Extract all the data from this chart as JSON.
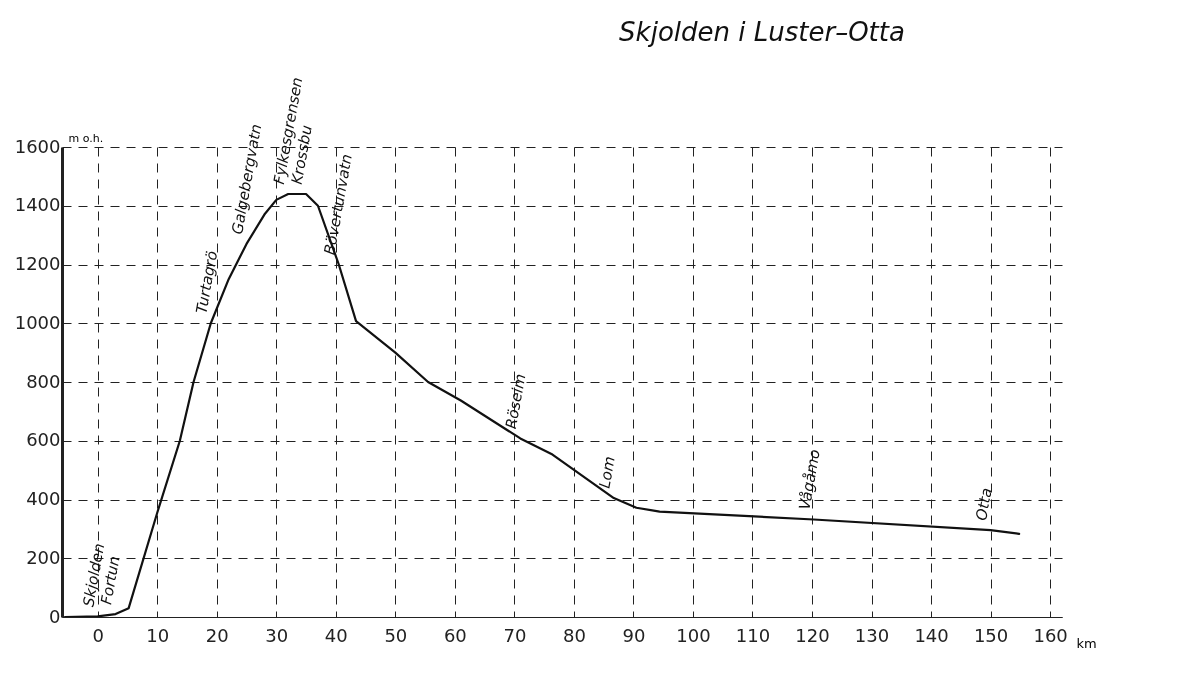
{
  "chart_data": {
    "type": "line",
    "title": "Skjolden i Luster–Otta",
    "xlabel": "km",
    "ylabel": "m o.h.",
    "x": [
      -5.5,
      0,
      3,
      5.2,
      10,
      13.8,
      16.1,
      19,
      22,
      25,
      28,
      30,
      32,
      35,
      37,
      40.5,
      43.4,
      50,
      55.5,
      61,
      71,
      76.4,
      86.7,
      90.5,
      94.4,
      120.3,
      150,
      154.8
    ],
    "series": [
      {
        "color": "#111111",
        "values": [
          0,
          2,
          10,
          30,
          355,
          600,
          800,
          1000,
          1150,
          1270,
          1370,
          1420,
          1440,
          1440,
          1400,
          1200,
          1007,
          900,
          800,
          737,
          608,
          553,
          405,
          372,
          359,
          332,
          296,
          283
        ]
      }
    ],
    "annotations": [
      {
        "text": "Skjolden",
        "x": 0,
        "y": 2
      },
      {
        "text": "Fortun",
        "x": 3,
        "y": 10
      },
      {
        "text": "Turtagrö",
        "x": 19,
        "y": 1000
      },
      {
        "text": "Galgebergvatn",
        "x": 25,
        "y": 1270
      },
      {
        "text": "Fylkesgrensen",
        "x": 32,
        "y": 1440
      },
      {
        "text": "Krossbu",
        "x": 35,
        "y": 1440
      },
      {
        "text": "Bövertunvatn",
        "x": 40.5,
        "y": 1200
      },
      {
        "text": "Röseim",
        "x": 71,
        "y": 608
      },
      {
        "text": "Lom",
        "x": 86.7,
        "y": 405
      },
      {
        "text": "Vågåmo",
        "x": 120.3,
        "y": 332
      },
      {
        "text": "Otta",
        "x": 150,
        "y": 296
      }
    ],
    "xlim": [
      -6,
      162
    ],
    "xticks": [
      0,
      10,
      20,
      30,
      40,
      50,
      60,
      70,
      80,
      90,
      100,
      110,
      120,
      130,
      140,
      150,
      160
    ],
    "ylim": [
      0,
      1600
    ],
    "yticks": [
      0,
      200,
      400,
      600,
      800,
      1000,
      1200,
      1400,
      1600
    ],
    "grid": true,
    "line_style": "solid",
    "marker": "none"
  }
}
